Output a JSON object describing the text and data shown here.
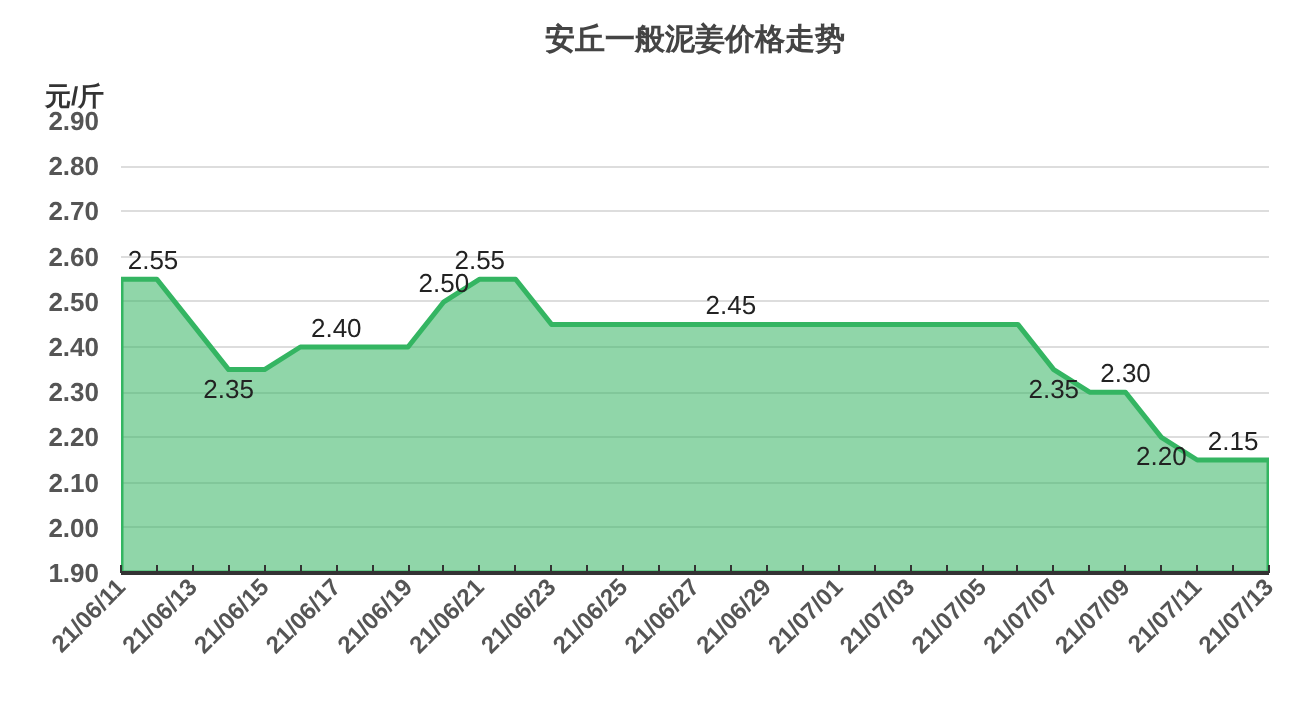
{
  "chart_data": {
    "type": "area",
    "title": "安丘一般泥姜价格走势",
    "ylabel": "元/斤",
    "categories": [
      "21/06/11",
      null,
      "21/06/13",
      null,
      "21/06/15",
      null,
      "21/06/17",
      null,
      "21/06/19",
      null,
      "21/06/21",
      null,
      "21/06/23",
      null,
      "21/06/25",
      null,
      "21/06/27",
      null,
      "21/06/29",
      null,
      "21/07/01",
      null,
      "21/07/03",
      null,
      "21/07/05",
      null,
      "21/07/07",
      null,
      "21/07/09",
      null,
      "21/07/11",
      null,
      "21/07/13"
    ],
    "series": [
      {
        "color": "#34b562",
        "values": [
          2.55,
          2.55,
          2.45,
          2.35,
          2.35,
          2.4,
          2.4,
          2.4,
          2.4,
          2.5,
          2.55,
          2.55,
          2.45,
          2.45,
          2.45,
          2.45,
          2.45,
          2.45,
          2.45,
          2.45,
          2.45,
          2.45,
          2.45,
          2.45,
          2.45,
          2.45,
          2.35,
          2.3,
          2.3,
          2.2,
          2.15,
          2.15,
          2.15
        ],
        "value_labels": [
          "2.55",
          null,
          null,
          "2.35",
          null,
          null,
          "2.40",
          null,
          null,
          "2.50",
          "2.55",
          null,
          null,
          null,
          null,
          null,
          null,
          "2.45",
          null,
          null,
          null,
          null,
          null,
          null,
          null,
          null,
          "2.35",
          null,
          "2.30",
          "2.20",
          null,
          "2.15",
          null
        ]
      }
    ],
    "ylim": [
      1.9,
      2.9
    ],
    "yticks": [
      {
        "value": 1.9,
        "label": "1.90"
      },
      {
        "value": 2.0,
        "label": "2.00"
      },
      {
        "value": 2.1,
        "label": "2.10"
      },
      {
        "value": 2.2,
        "label": "2.20"
      },
      {
        "value": 2.3,
        "label": "2.30"
      },
      {
        "value": 2.4,
        "label": "2.40"
      },
      {
        "value": 2.5,
        "label": "2.50"
      },
      {
        "value": 2.6,
        "label": "2.60"
      },
      {
        "value": 2.7,
        "label": "2.70"
      },
      {
        "value": 2.8,
        "label": "2.80"
      },
      {
        "value": 2.9,
        "label": "2.90"
      }
    ],
    "grid": "y"
  }
}
